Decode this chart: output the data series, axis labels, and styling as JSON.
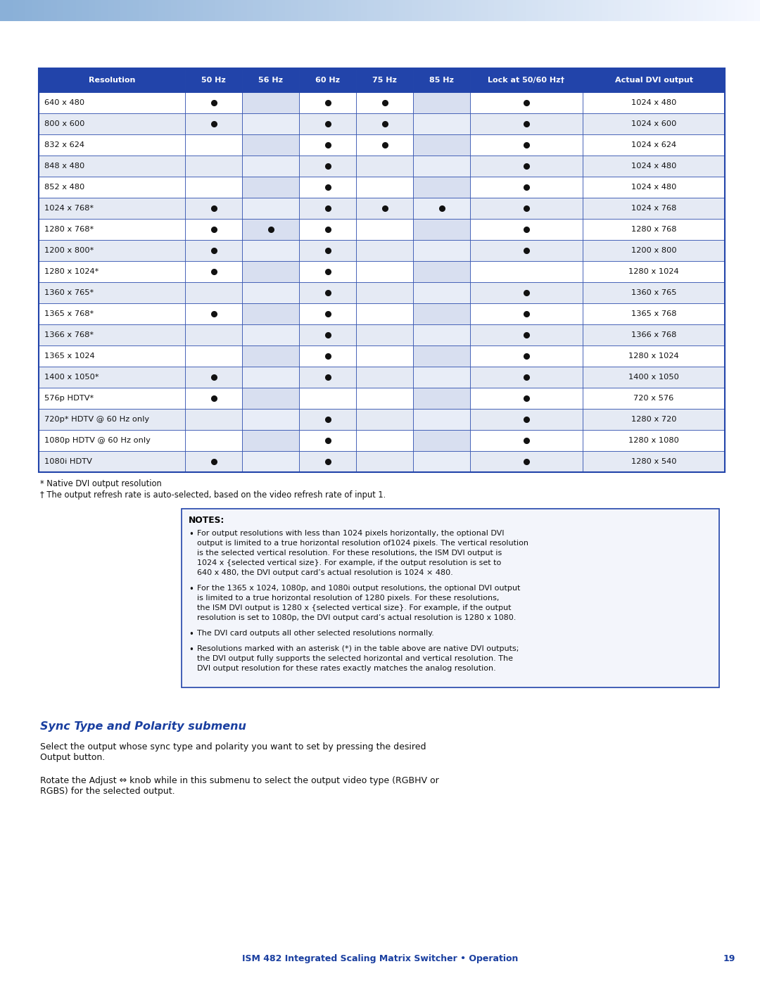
{
  "page_bg": "#ffffff",
  "table_border_color": "#2244aa",
  "table_header_bg": "#2244aa",
  "table_header_text_color": "#ffffff",
  "table_row_bg_even": "#e5eaf4",
  "table_row_bg_odd": "#ffffff",
  "table_col_shaded_even": "#d8dff0",
  "table_col_shaded_odd": "#e8edf7",
  "dot_color": "#111111",
  "col_headers": [
    "Resolution",
    "50 Hz",
    "56 Hz",
    "60 Hz",
    "75 Hz",
    "85 Hz",
    "Lock at 50/60 Hz†",
    "Actual DVI output"
  ],
  "rows": [
    [
      "640 x 480",
      1,
      0,
      1,
      1,
      0,
      1,
      "1024 x 480"
    ],
    [
      "800 x 600",
      1,
      0,
      1,
      1,
      0,
      1,
      "1024 x 600"
    ],
    [
      "832 x 624",
      0,
      0,
      1,
      1,
      0,
      1,
      "1024 x 624"
    ],
    [
      "848 x 480",
      0,
      0,
      1,
      0,
      0,
      1,
      "1024 x 480"
    ],
    [
      "852 x 480",
      0,
      0,
      1,
      0,
      0,
      1,
      "1024 x 480"
    ],
    [
      "1024 x 768*",
      1,
      0,
      1,
      1,
      1,
      1,
      "1024 x 768"
    ],
    [
      "1280 x 768*",
      1,
      1,
      1,
      0,
      0,
      1,
      "1280 x 768"
    ],
    [
      "1200 x 800*",
      1,
      0,
      1,
      0,
      0,
      1,
      "1200 x 800"
    ],
    [
      "1280 x 1024*",
      1,
      0,
      1,
      0,
      0,
      0,
      "1280 x 1024"
    ],
    [
      "1360 x 765*",
      0,
      0,
      1,
      0,
      0,
      1,
      "1360 x 765"
    ],
    [
      "1365 x 768*",
      1,
      0,
      1,
      0,
      0,
      1,
      "1365 x 768"
    ],
    [
      "1366 x 768*",
      0,
      0,
      1,
      0,
      0,
      1,
      "1366 x 768"
    ],
    [
      "1365 x 1024",
      0,
      0,
      1,
      0,
      0,
      1,
      "1280 x 1024"
    ],
    [
      "1400 x 1050*",
      1,
      0,
      1,
      0,
      0,
      1,
      "1400 x 1050"
    ],
    [
      "576p HDTV*",
      1,
      0,
      0,
      0,
      0,
      1,
      "720 x 576"
    ],
    [
      "720p* HDTV @ 60 Hz only",
      0,
      0,
      1,
      0,
      0,
      1,
      "1280 x 720"
    ],
    [
      "1080p HDTV @ 60 Hz only",
      0,
      0,
      1,
      0,
      0,
      1,
      "1280 x 1080"
    ],
    [
      "1080i HDTV",
      1,
      0,
      1,
      0,
      0,
      1,
      "1280 x 540"
    ]
  ],
  "footnote1": "* Native DVI output resolution",
  "footnote2": "† The output refresh rate is auto-selected, based on the video refresh rate of input 1.",
  "notes_title": "NOTES:",
  "notes_bullet1_lines": [
    "For output resolutions with less than 1024 pixels horizontally, the optional DVI",
    "output is limited to a true horizontal resolution of1024 pixels. The vertical resolution",
    "is the selected vertical resolution. For these resolutions, the ISM DVI output is",
    "1024 x {selected vertical size}. For example, if the output resolution is set to",
    "640 x 480, the DVI output card’s actual resolution is 1024 × 480."
  ],
  "notes_bullet2_lines": [
    "For the 1365 x 1024, 1080p, and 1080i output resolutions, the optional DVI output",
    "is limited to a true horizontal resolution of 1280 pixels. For these resolutions,",
    "the ISM DVI output is 1280 x {selected vertical size}. For example, if the output",
    "resolution is set to 1080p, the DVI output card’s actual resolution is 1280 x 1080."
  ],
  "notes_bullet3_lines": [
    "The DVI card outputs all other selected resolutions normally."
  ],
  "notes_bullet4_lines": [
    "Resolutions marked with an asterisk (*) in the table above are native DVI outputs;",
    "the DVI output fully supports the selected horizontal and vertical resolution. The",
    "DVI output resolution for these rates exactly matches the analog resolution."
  ],
  "section_title": "Sync Type and Polarity submenu",
  "para1_lines": [
    "Select the output whose sync type and polarity you want to set by pressing the desired",
    "Output button."
  ],
  "para2_lines": [
    "Rotate the Adjust ⇔ knob while in this submenu to select the output video type (RGBHV or",
    "RGBS) for the selected output."
  ],
  "footer_text": "ISM 482 Integrated Scaling Matrix Switcher • Operation",
  "footer_page": "19",
  "blue_accent": "#1a3fa0",
  "notes_border": "#2244aa",
  "notes_bg": "#f3f5fb"
}
